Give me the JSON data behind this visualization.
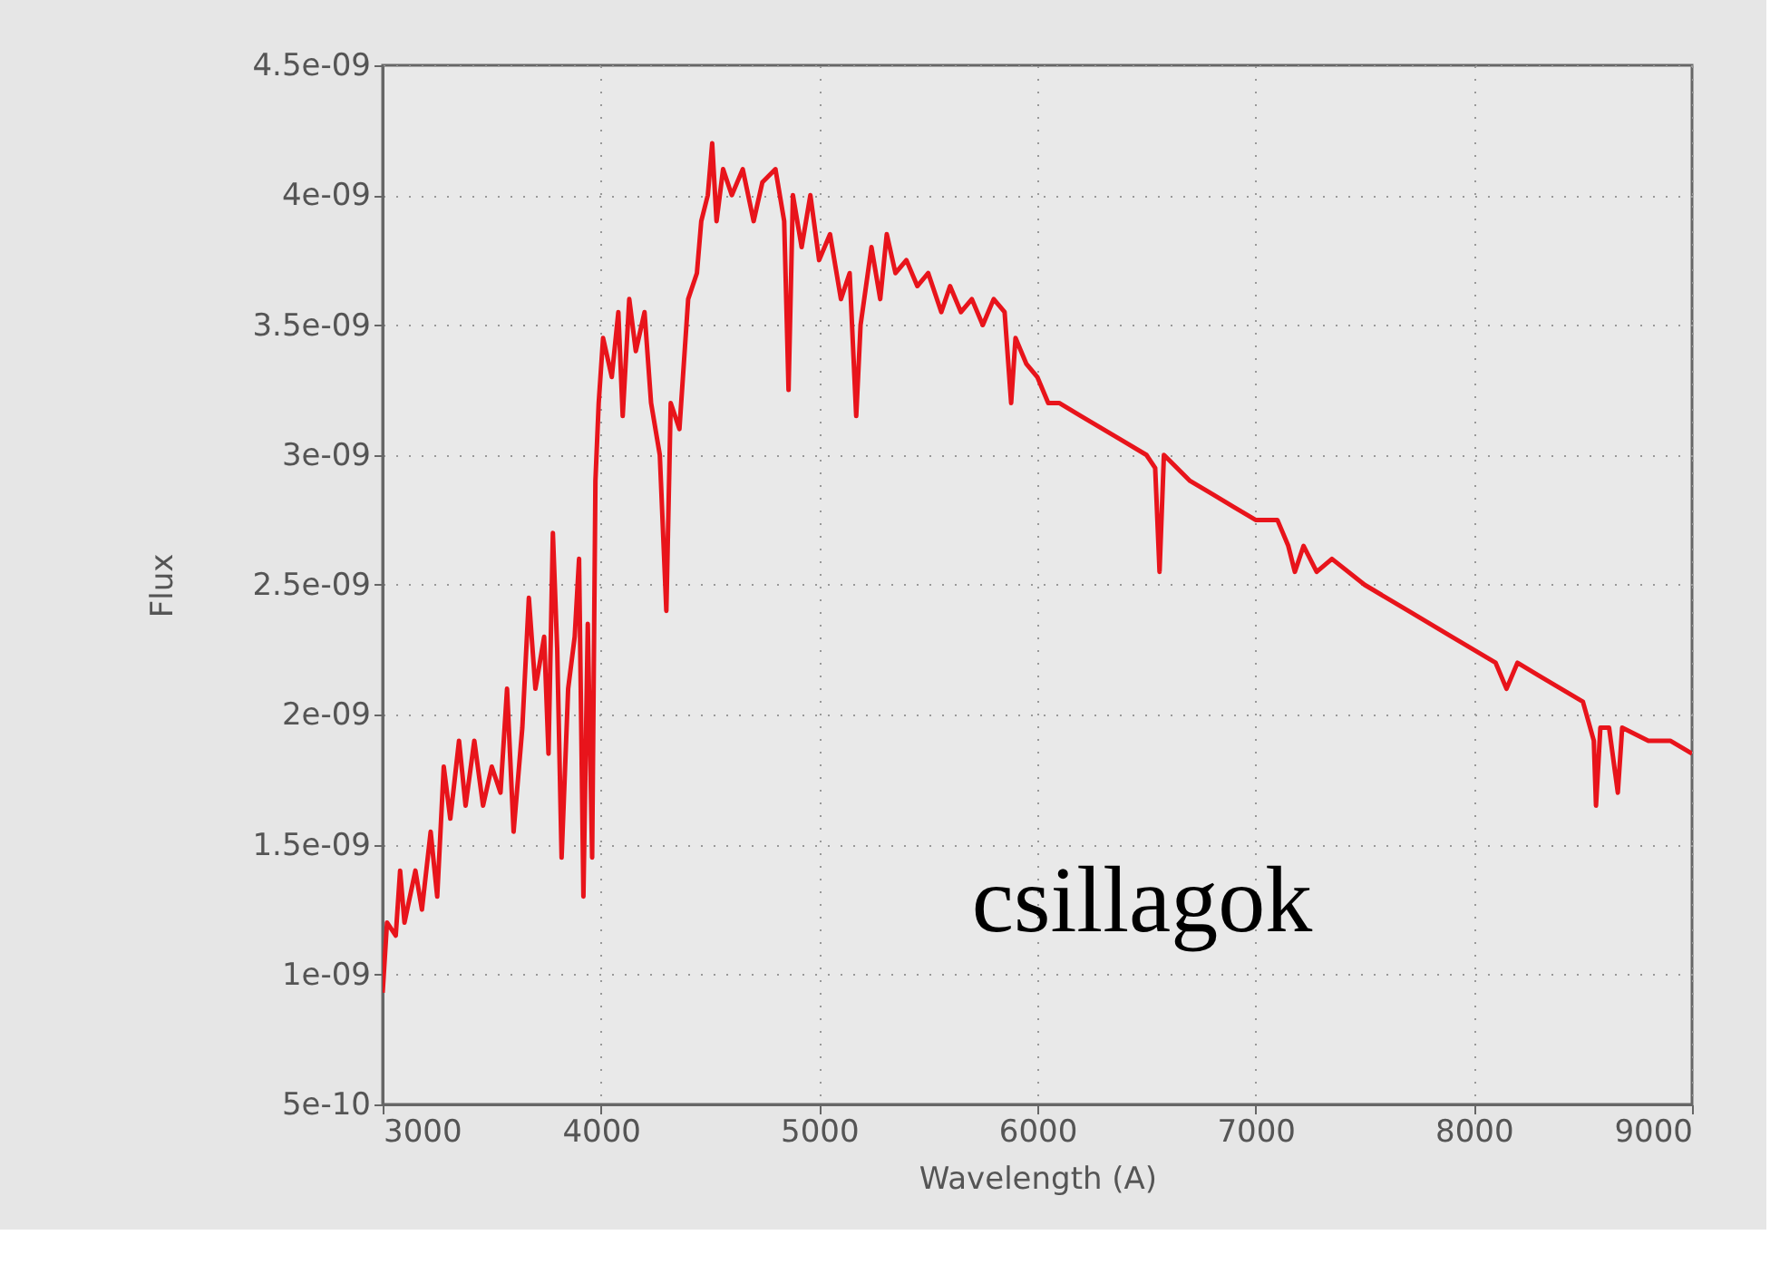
{
  "chart_data": {
    "type": "line",
    "xlabel": "Wavelength (A)",
    "ylabel": "Flux",
    "annotations": [
      "csillagok"
    ],
    "xlim": [
      3000,
      9000
    ],
    "xticks": [
      3000,
      4000,
      5000,
      6000,
      7000,
      8000,
      9000
    ],
    "ylim": [
      5e-10,
      4.5e-09
    ],
    "yticks": [
      {
        "value": 5e-10,
        "label": "5e-10"
      },
      {
        "value": 1e-09,
        "label": "1e-09"
      },
      {
        "value": 1.5e-09,
        "label": "1.5e-09"
      },
      {
        "value": 2e-09,
        "label": "2e-09"
      },
      {
        "value": 2.5e-09,
        "label": "2.5e-09"
      },
      {
        "value": 3e-09,
        "label": "3e-09"
      },
      {
        "value": 3.5e-09,
        "label": "3.5e-09"
      },
      {
        "value": 4e-09,
        "label": "4e-09"
      },
      {
        "value": 4.5e-09,
        "label": "4.5e-09"
      }
    ],
    "grid": true,
    "marker": "none",
    "line_style": "solid",
    "series": [
      {
        "color": "#e8141b",
        "x": [
          3000,
          3020,
          3060,
          3080,
          3100,
          3150,
          3180,
          3220,
          3250,
          3280,
          3310,
          3350,
          3380,
          3420,
          3460,
          3500,
          3540,
          3570,
          3600,
          3640,
          3670,
          3700,
          3740,
          3760,
          3780,
          3800,
          3820,
          3850,
          3880,
          3900,
          3920,
          3940,
          3960,
          3975,
          3990,
          4010,
          4050,
          4080,
          4100,
          4130,
          4160,
          4200,
          4230,
          4270,
          4300,
          4320,
          4360,
          4400,
          4440,
          4460,
          4490,
          4510,
          4530,
          4560,
          4600,
          4650,
          4700,
          4740,
          4800,
          4840,
          4860,
          4880,
          4920,
          4960,
          5000,
          5050,
          5100,
          5140,
          5170,
          5190,
          5240,
          5280,
          5310,
          5350,
          5400,
          5450,
          5500,
          5560,
          5600,
          5650,
          5700,
          5750,
          5800,
          5850,
          5880,
          5900,
          5950,
          6000,
          6050,
          6100,
          6200,
          6300,
          6400,
          6500,
          6540,
          6560,
          6580,
          6700,
          6800,
          6900,
          7000,
          7100,
          7150,
          7180,
          7220,
          7280,
          7350,
          7500,
          7700,
          7900,
          8000,
          8100,
          8150,
          8200,
          8300,
          8400,
          8500,
          8550,
          8560,
          8580,
          8620,
          8660,
          8680,
          8800,
          8900,
          9000
        ],
        "values": [
          9.3e-10,
          1.2e-09,
          1.15e-09,
          1.4e-09,
          1.2e-09,
          1.4e-09,
          1.25e-09,
          1.55e-09,
          1.3e-09,
          1.8e-09,
          1.6e-09,
          1.9e-09,
          1.65e-09,
          1.9e-09,
          1.65e-09,
          1.8e-09,
          1.7e-09,
          2.1e-09,
          1.55e-09,
          1.95e-09,
          2.45e-09,
          2.1e-09,
          2.3e-09,
          1.85e-09,
          2.7e-09,
          2.25e-09,
          1.45e-09,
          2.1e-09,
          2.3e-09,
          2.6e-09,
          1.3e-09,
          2.35e-09,
          1.45e-09,
          2.9e-09,
          3.2e-09,
          3.45e-09,
          3.3e-09,
          3.55e-09,
          3.15e-09,
          3.6e-09,
          3.4e-09,
          3.55e-09,
          3.2e-09,
          3e-09,
          2.4e-09,
          3.2e-09,
          3.1e-09,
          3.6e-09,
          3.7e-09,
          3.9e-09,
          4e-09,
          4.2e-09,
          3.9e-09,
          4.1e-09,
          4e-09,
          4.1e-09,
          3.9e-09,
          4.05e-09,
          4.1e-09,
          3.9e-09,
          3.25e-09,
          4e-09,
          3.8e-09,
          4e-09,
          3.75e-09,
          3.85e-09,
          3.6e-09,
          3.7e-09,
          3.15e-09,
          3.5e-09,
          3.8e-09,
          3.6e-09,
          3.85e-09,
          3.7e-09,
          3.75e-09,
          3.65e-09,
          3.7e-09,
          3.55e-09,
          3.65e-09,
          3.55e-09,
          3.6e-09,
          3.5e-09,
          3.6e-09,
          3.55e-09,
          3.2e-09,
          3.45e-09,
          3.35e-09,
          3.3e-09,
          3.2e-09,
          3.2e-09,
          3.15e-09,
          3.1e-09,
          3.05e-09,
          3e-09,
          2.95e-09,
          2.55e-09,
          3e-09,
          2.9e-09,
          2.85e-09,
          2.8e-09,
          2.75e-09,
          2.75e-09,
          2.65e-09,
          2.55e-09,
          2.65e-09,
          2.55e-09,
          2.6e-09,
          2.5e-09,
          2.4e-09,
          2.3e-09,
          2.25e-09,
          2.2e-09,
          2.1e-09,
          2.2e-09,
          2.15e-09,
          2.1e-09,
          2.05e-09,
          1.9e-09,
          1.65e-09,
          1.95e-09,
          1.95e-09,
          1.7e-09,
          1.95e-09,
          1.9e-09,
          1.9e-09,
          1.85e-09
        ]
      }
    ]
  }
}
